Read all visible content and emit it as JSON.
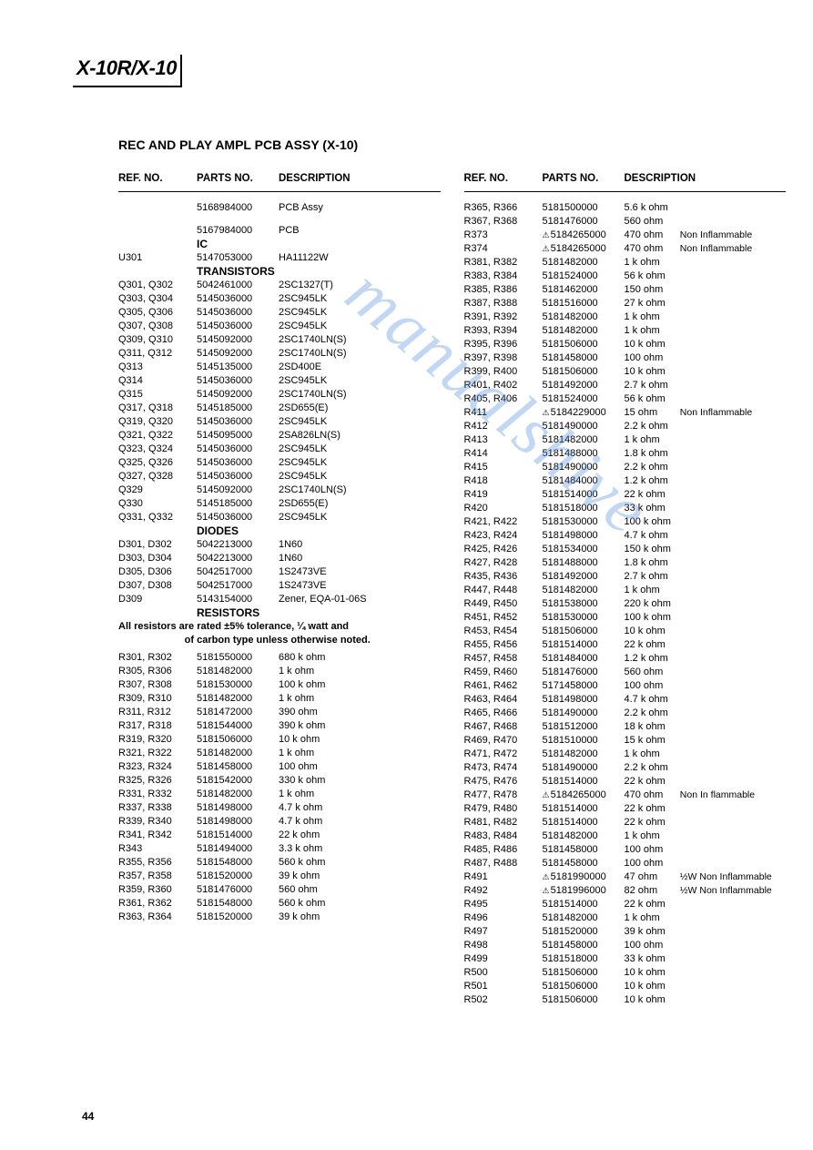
{
  "model": "X-10R/X-10",
  "sectionTitle": "REC AND PLAY AMPL PCB ASSY (X-10)",
  "pageNumber": "44",
  "watermarkText": "manualshive",
  "headers": {
    "ref": "REF. NO.",
    "part": "PARTS NO.",
    "desc": "DESCRIPTION"
  },
  "left": [
    {
      "type": "spacer"
    },
    {
      "ref": "",
      "part": "5168984000",
      "desc": "PCB Assy"
    },
    {
      "type": "spacer"
    },
    {
      "ref": "",
      "part": "5167984000",
      "desc": "PCB"
    },
    {
      "type": "subhead",
      "label": "IC"
    },
    {
      "ref": "U301",
      "part": "5147053000",
      "desc": "HA11122W"
    },
    {
      "type": "subhead",
      "label": "TRANSISTORS"
    },
    {
      "ref": "Q301, Q302",
      "part": "5042461000",
      "desc": "2SC1327(T)"
    },
    {
      "ref": "Q303, Q304",
      "part": "5145036000",
      "desc": "2SC945LK"
    },
    {
      "ref": "Q305, Q306",
      "part": "5145036000",
      "desc": "2SC945LK"
    },
    {
      "ref": "Q307, Q308",
      "part": "5145036000",
      "desc": "2SC945LK"
    },
    {
      "ref": "Q309, Q310",
      "part": "5145092000",
      "desc": "2SC1740LN(S)"
    },
    {
      "ref": "Q311, Q312",
      "part": "5145092000",
      "desc": "2SC1740LN(S)"
    },
    {
      "ref": "Q313",
      "part": "5145135000",
      "desc": "2SD400E"
    },
    {
      "ref": "Q314",
      "part": "5145036000",
      "desc": "2SC945LK"
    },
    {
      "ref": "Q315",
      "part": "5145092000",
      "desc": "2SC1740LN(S)"
    },
    {
      "ref": "Q317, Q318",
      "part": "5145185000",
      "desc": "2SD655(E)"
    },
    {
      "ref": "Q319, Q320",
      "part": "5145036000",
      "desc": "2SC945LK"
    },
    {
      "ref": "Q321, Q322",
      "part": "5145095000",
      "desc": "2SA826LN(S)"
    },
    {
      "ref": "Q323, Q324",
      "part": "5145036000",
      "desc": "2SC945LK"
    },
    {
      "ref": "Q325, Q326",
      "part": "5145036000",
      "desc": "2SC945LK"
    },
    {
      "ref": "Q327, Q328",
      "part": "5145036000",
      "desc": "2SC945LK"
    },
    {
      "ref": "Q329",
      "part": "5145092000",
      "desc": "2SC1740LN(S)"
    },
    {
      "ref": "Q330",
      "part": "5145185000",
      "desc": "2SD655(E)"
    },
    {
      "ref": "Q331, Q332",
      "part": "5145036000",
      "desc": "2SC945LK"
    },
    {
      "type": "subhead",
      "label": "DIODES"
    },
    {
      "ref": "D301, D302",
      "part": "5042213000",
      "desc": "1N60"
    },
    {
      "ref": "D303, D304",
      "part": "5042213000",
      "desc": "1N60"
    },
    {
      "ref": "D305, D306",
      "part": "5042517000",
      "desc": "1S2473VE"
    },
    {
      "ref": "D307, D308",
      "part": "5042517000",
      "desc": "1S2473VE"
    },
    {
      "ref": "D309",
      "part": "5143154000",
      "desc": "Zener, EQA-01-06S"
    },
    {
      "type": "subhead",
      "label": "RESISTORS"
    },
    {
      "type": "subnote",
      "label": "All resistors are rated ±5% tolerance, ¼ watt and"
    },
    {
      "type": "subnote",
      "label": "of carbon type unless otherwise noted.",
      "center": true
    },
    {
      "type": "half-spacer"
    },
    {
      "ref": "R301, R302",
      "part": "5181550000",
      "desc": "680 k ohm"
    },
    {
      "ref": "R305, R306",
      "part": "5181482000",
      "desc": "1 k ohm"
    },
    {
      "ref": "R307, R308",
      "part": "5181530000",
      "desc": "100 k ohm"
    },
    {
      "ref": "R309, R310",
      "part": "5181482000",
      "desc": "1 k ohm"
    },
    {
      "ref": "R311, R312",
      "part": "5181472000",
      "desc": "390 ohm"
    },
    {
      "ref": "R317, R318",
      "part": "5181544000",
      "desc": "390 k ohm"
    },
    {
      "ref": "R319, R320",
      "part": "5181506000",
      "desc": "10 k ohm"
    },
    {
      "ref": "R321, R322",
      "part": "5181482000",
      "desc": "1 k ohm"
    },
    {
      "ref": "R323, R324",
      "part": "5181458000",
      "desc": "100 ohm"
    },
    {
      "ref": "R325, R326",
      "part": "5181542000",
      "desc": "330 k ohm"
    },
    {
      "ref": "R331, R332",
      "part": "5181482000",
      "desc": "1 k ohm"
    },
    {
      "ref": "R337, R338",
      "part": "5181498000",
      "desc": "4.7 k ohm"
    },
    {
      "ref": "R339, R340",
      "part": "5181498000",
      "desc": "4.7 k ohm"
    },
    {
      "ref": "R341, R342",
      "part": "5181514000",
      "desc": "22 k ohm"
    },
    {
      "ref": "R343",
      "part": "5181494000",
      "desc": "3.3 k ohm"
    },
    {
      "ref": "R355, R356",
      "part": "5181548000",
      "desc": "560 k ohm"
    },
    {
      "ref": "R357, R358",
      "part": "5181520000",
      "desc": "39 k ohm"
    },
    {
      "ref": "R359, R360",
      "part": "5181476000",
      "desc": "560 ohm"
    },
    {
      "ref": "R361, R362",
      "part": "5181548000",
      "desc": "560 k ohm"
    },
    {
      "ref": "R363, R364",
      "part": "5181520000",
      "desc": "39 k ohm"
    }
  ],
  "right": [
    {
      "type": "spacer"
    },
    {
      "ref": "R365, R366",
      "part": "5181500000",
      "desc": "5.6 k ohm"
    },
    {
      "ref": "R367, R368",
      "part": "5181476000",
      "desc": "560 ohm"
    },
    {
      "ref": "R373",
      "part": "5184265000",
      "desc": "470 ohm",
      "warn": true,
      "note": "Non Inflammable"
    },
    {
      "ref": "R374",
      "part": "5184265000",
      "desc": "470 ohm",
      "warn": true,
      "note": "Non Inflammable"
    },
    {
      "ref": "R381, R382",
      "part": "5181482000",
      "desc": "1 k ohm"
    },
    {
      "ref": "R383, R384",
      "part": "5181524000",
      "desc": "56 k ohm"
    },
    {
      "ref": "R385, R386",
      "part": "5181462000",
      "desc": "150 ohm"
    },
    {
      "ref": "R387, R388",
      "part": "5181516000",
      "desc": "27 k ohm"
    },
    {
      "ref": "R391, R392",
      "part": "5181482000",
      "desc": "1 k ohm"
    },
    {
      "ref": "R393, R394",
      "part": "5181482000",
      "desc": "1 k ohm"
    },
    {
      "ref": "R395, R396",
      "part": "5181506000",
      "desc": "10 k ohm"
    },
    {
      "ref": "R397, R398",
      "part": "5181458000",
      "desc": "100 ohm"
    },
    {
      "ref": "R399, R400",
      "part": "5181506000",
      "desc": "10 k ohm"
    },
    {
      "ref": "R401, R402",
      "part": "5181492000",
      "desc": "2.7 k ohm"
    },
    {
      "ref": "R405, R406",
      "part": "5181524000",
      "desc": "56 k ohm"
    },
    {
      "ref": "R411",
      "part": "5184229000",
      "desc": "15 ohm",
      "warn": true,
      "note": "Non Inflammable"
    },
    {
      "ref": "R412",
      "part": "5181490000",
      "desc": "2.2 k ohm"
    },
    {
      "ref": "R413",
      "part": "5181482000",
      "desc": "1 k ohm"
    },
    {
      "ref": "R414",
      "part": "5181488000",
      "desc": "1.8 k ohm"
    },
    {
      "ref": "R415",
      "part": "5181490000",
      "desc": "2.2 k ohm"
    },
    {
      "ref": "R418",
      "part": "5181484000",
      "desc": "1.2 k ohm"
    },
    {
      "ref": "R419",
      "part": "5181514000",
      "desc": "22 k ohm"
    },
    {
      "ref": "R420",
      "part": "5181518000",
      "desc": "33 k ohm"
    },
    {
      "ref": "R421, R422",
      "part": "5181530000",
      "desc": "100 k ohm"
    },
    {
      "ref": "R423, R424",
      "part": "5181498000",
      "desc": "4.7 k ohm"
    },
    {
      "ref": "R425, R426",
      "part": "5181534000",
      "desc": "150 k ohm"
    },
    {
      "ref": "R427, R428",
      "part": "5181488000",
      "desc": "1.8 k ohm"
    },
    {
      "ref": "R435, R436",
      "part": "5181492000",
      "desc": "2.7 k ohm"
    },
    {
      "ref": "R447, R448",
      "part": "5181482000",
      "desc": "1 k ohm"
    },
    {
      "ref": "R449, R450",
      "part": "5181538000",
      "desc": "220 k ohm"
    },
    {
      "ref": "R451, R452",
      "part": "5181530000",
      "desc": "100 k ohm"
    },
    {
      "ref": "R453, R454",
      "part": "5181506000",
      "desc": "10 k ohm"
    },
    {
      "ref": "R455, R456",
      "part": "5181514000",
      "desc": "22 k ohm"
    },
    {
      "ref": "R457, R458",
      "part": "5181484000",
      "desc": "1.2 k ohm"
    },
    {
      "ref": "R459, R460",
      "part": "5181476000",
      "desc": "560 ohm"
    },
    {
      "ref": "R461, R462",
      "part": "5171458000",
      "desc": "100 ohm"
    },
    {
      "ref": "R463, R464",
      "part": "5181498000",
      "desc": "4.7 k ohm"
    },
    {
      "ref": "R465, R466",
      "part": "5181490000",
      "desc": "2.2 k ohm"
    },
    {
      "ref": "R467, R468",
      "part": "5181512000",
      "desc": "18 k ohm"
    },
    {
      "ref": "R469, R470",
      "part": "5181510000",
      "desc": "15 k ohm"
    },
    {
      "ref": "R471, R472",
      "part": "5181482000",
      "desc": "1 k ohm"
    },
    {
      "ref": "R473, R474",
      "part": "5181490000",
      "desc": "2.2 k ohm"
    },
    {
      "ref": "R475, R476",
      "part": "5181514000",
      "desc": "22 k ohm"
    },
    {
      "ref": "R477, R478",
      "part": "5184265000",
      "desc": "470 ohm",
      "warn": true,
      "note": "Non In flammable"
    },
    {
      "ref": "R479, R480",
      "part": "5181514000",
      "desc": "22 k ohm"
    },
    {
      "ref": "R481, R482",
      "part": "5181514000",
      "desc": "22 k ohm"
    },
    {
      "ref": "R483, R484",
      "part": "5181482000",
      "desc": "1 k ohm"
    },
    {
      "ref": "R485, R486",
      "part": "5181458000",
      "desc": "100 ohm"
    },
    {
      "ref": "R487, R488",
      "part": "5181458000",
      "desc": "100 ohm"
    },
    {
      "ref": "R491",
      "part": "5181990000",
      "desc": "47 ohm",
      "warn": true,
      "note": "½W  Non Inflammable"
    },
    {
      "ref": "R492",
      "part": "5181996000",
      "desc": "82 ohm",
      "warn": true,
      "note": "½W  Non Inflammable"
    },
    {
      "ref": "R495",
      "part": "5181514000",
      "desc": "22 k ohm"
    },
    {
      "ref": "R496",
      "part": "5181482000",
      "desc": "1 k ohm"
    },
    {
      "ref": "R497",
      "part": "5181520000",
      "desc": "39 k ohm"
    },
    {
      "ref": "R498",
      "part": "5181458000",
      "desc": "100 ohm"
    },
    {
      "ref": "R499",
      "part": "5181518000",
      "desc": "33 k ohm"
    },
    {
      "ref": "R500",
      "part": "5181506000",
      "desc": "10 k ohm"
    },
    {
      "ref": "R501",
      "part": "5181506000",
      "desc": "10 k ohm"
    },
    {
      "ref": "R502",
      "part": "5181506000",
      "desc": "10 k ohm"
    }
  ]
}
